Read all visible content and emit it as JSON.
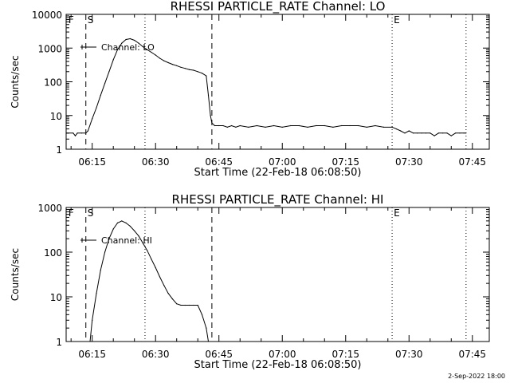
{
  "footer": {
    "date_stamp": "2-Sep-2022 18:00"
  },
  "chart_data": [
    {
      "type": "line",
      "title": "RHESSI PARTICLE_RATE Channel: LO",
      "xlabel": "Start Time (22-Feb-18 06:08:50)",
      "ylabel": "Counts/sec",
      "xlim": [
        "06:08:50",
        "07:49:00"
      ],
      "ylim": [
        1,
        10000
      ],
      "yscale": "log",
      "x_ticks": [
        "06:15",
        "06:30",
        "06:45",
        "07:00",
        "07:15",
        "07:30",
        "07:45"
      ],
      "y_ticks": [
        "1",
        "10",
        "100",
        "1000",
        "10000"
      ],
      "legend": {
        "label": "Channel: LO",
        "position": "top-left"
      },
      "markers": [
        {
          "label": "F",
          "time": "06:09:00",
          "style": "none"
        },
        {
          "label": "S",
          "time": "06:13:30",
          "style": "dashed"
        },
        {
          "label": "",
          "time": "06:27:30",
          "style": "dotted"
        },
        {
          "label": "",
          "time": "06:43:20",
          "style": "dashed"
        },
        {
          "label": "E",
          "time": "07:26:00",
          "style": "dotted"
        },
        {
          "label": "",
          "time": "07:43:30",
          "style": "dotted"
        }
      ],
      "series": [
        {
          "name": "Channel: LO",
          "x": [
            "06:09:00",
            "06:10:30",
            "06:11:00",
            "06:11:30",
            "06:12:30",
            "06:13:30",
            "06:14:00",
            "06:15:00",
            "06:16:00",
            "06:17:00",
            "06:18:00",
            "06:19:00",
            "06:20:00",
            "06:21:00",
            "06:22:00",
            "06:23:00",
            "06:24:00",
            "06:25:00",
            "06:26:00",
            "06:27:00",
            "06:28:00",
            "06:29:00",
            "06:30:00",
            "06:31:00",
            "06:32:00",
            "06:33:00",
            "06:34:00",
            "06:35:00",
            "06:36:00",
            "06:37:00",
            "06:38:00",
            "06:39:00",
            "06:40:00",
            "06:41:00",
            "06:42:00",
            "06:42:30",
            "06:43:00",
            "06:43:20",
            "06:44:00",
            "06:45:00",
            "06:46:00",
            "06:47:00",
            "06:48:00",
            "06:49:00",
            "06:50:00",
            "06:52:00",
            "06:54:00",
            "06:56:00",
            "06:58:00",
            "07:00:00",
            "07:02:00",
            "07:04:00",
            "07:06:00",
            "07:08:00",
            "07:10:00",
            "07:12:00",
            "07:14:00",
            "07:16:00",
            "07:18:00",
            "07:20:00",
            "07:22:00",
            "07:24:00",
            "07:26:00",
            "07:27:00",
            "07:28:00",
            "07:29:00",
            "07:30:00",
            "07:31:00",
            "07:32:00",
            "07:33:00",
            "07:34:00",
            "07:35:00",
            "07:36:00",
            "07:37:00",
            "07:38:00",
            "07:39:00",
            "07:40:00",
            "07:41:00",
            "07:42:00",
            "07:43:00",
            "07:43:30"
          ],
          "y": [
            3,
            3,
            2.5,
            3,
            3,
            3,
            3.5,
            8,
            17,
            40,
            90,
            200,
            450,
            900,
            1400,
            1800,
            1900,
            1700,
            1400,
            1100,
            900,
            750,
            620,
            500,
            420,
            370,
            330,
            300,
            270,
            250,
            230,
            220,
            200,
            180,
            150,
            40,
            10,
            6,
            5,
            5,
            5,
            4.5,
            5,
            4.5,
            5,
            4.5,
            5,
            4.5,
            5,
            4.5,
            5,
            5,
            4.5,
            5,
            5,
            4.5,
            5,
            5,
            5,
            4.5,
            5,
            4.5,
            4.5,
            4,
            3.5,
            3,
            3.5,
            3,
            3,
            3,
            3,
            3,
            2.5,
            3,
            3,
            3,
            2.5,
            3,
            3,
            3,
            3
          ]
        }
      ]
    },
    {
      "type": "line",
      "title": "RHESSI PARTICLE_RATE Channel: HI",
      "xlabel": "Start Time (22-Feb-18 06:08:50)",
      "ylabel": "Counts/sec",
      "xlim": [
        "06:08:50",
        "07:49:00"
      ],
      "ylim": [
        1,
        1000
      ],
      "yscale": "log",
      "x_ticks": [
        "06:15",
        "06:30",
        "06:45",
        "07:00",
        "07:15",
        "07:30",
        "07:45"
      ],
      "y_ticks": [
        "1",
        "10",
        "100",
        "1000"
      ],
      "legend": {
        "label": "Channel: HI",
        "position": "top-left"
      },
      "markers": [
        {
          "label": "F",
          "time": "06:09:00",
          "style": "none"
        },
        {
          "label": "S",
          "time": "06:13:30",
          "style": "dashed"
        },
        {
          "label": "",
          "time": "06:27:30",
          "style": "dotted"
        },
        {
          "label": "",
          "time": "06:43:20",
          "style": "dashed"
        },
        {
          "label": "E",
          "time": "07:26:00",
          "style": "dotted"
        },
        {
          "label": "",
          "time": "07:43:30",
          "style": "dotted"
        }
      ],
      "series": [
        {
          "name": "Channel: HI",
          "x": [
            "06:14:30",
            "06:15:00",
            "06:16:00",
            "06:17:00",
            "06:18:00",
            "06:19:00",
            "06:20:00",
            "06:21:00",
            "06:22:00",
            "06:23:00",
            "06:24:00",
            "06:25:00",
            "06:26:00",
            "06:27:00",
            "06:28:00",
            "06:29:00",
            "06:30:00",
            "06:31:00",
            "06:32:00",
            "06:33:00",
            "06:34:00",
            "06:35:00",
            "06:36:00",
            "06:37:00",
            "06:38:00",
            "06:39:00",
            "06:40:00",
            "06:41:00",
            "06:42:00",
            "06:42:30"
          ],
          "y": [
            1,
            3,
            12,
            40,
            100,
            200,
            330,
            450,
            500,
            450,
            380,
            300,
            230,
            160,
            110,
            70,
            45,
            28,
            18,
            12,
            9,
            7,
            6.5,
            6.5,
            6.5,
            6.5,
            6.5,
            4,
            2,
            1
          ]
        }
      ]
    }
  ]
}
